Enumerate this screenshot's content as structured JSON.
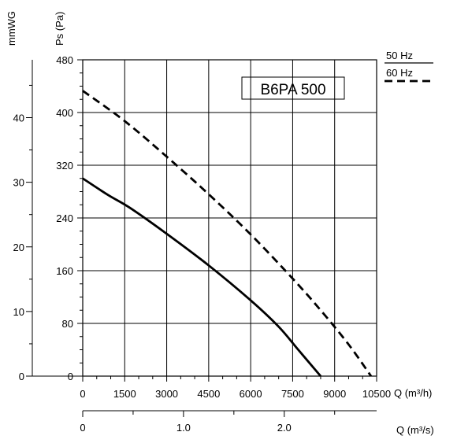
{
  "chart_data": {
    "type": "line",
    "title": "B6PA 500",
    "x_primary": {
      "label": "Q (m³/h)",
      "ticks": [
        "0",
        "1500",
        "3000",
        "4500",
        "6000",
        "7500",
        "9000",
        "10500"
      ],
      "range": [
        0,
        10500
      ]
    },
    "x_secondary": {
      "label": "Q (m³/s)",
      "ticks": [
        "0",
        "1.0",
        "2.0"
      ],
      "range": [
        0,
        2.9167
      ]
    },
    "y_primary": {
      "label": "Ps (Pa)",
      "ticks": [
        "0",
        "80",
        "160",
        "240",
        "320",
        "400",
        "480"
      ],
      "range": [
        0,
        480
      ]
    },
    "y_secondary": {
      "label": "mmWG",
      "ticks": [
        "0",
        "10",
        "20",
        "30",
        "40"
      ],
      "range": [
        0,
        48.95
      ]
    },
    "grid": true,
    "legend_position": "top-right",
    "series": [
      {
        "name": "50 Hz",
        "style": "solid",
        "color": "#000000",
        "x": [
          0,
          900,
          1700,
          3000,
          4500,
          6000,
          7000,
          7700,
          8500
        ],
        "y": [
          300,
          275,
          255,
          216,
          168,
          115,
          75,
          40,
          0
        ]
      },
      {
        "name": "60 Hz",
        "style": "dashed",
        "color": "#000000",
        "x": [
          0,
          1500,
          3000,
          4500,
          6000,
          7500,
          8500,
          9500,
          10300
        ],
        "y": [
          433,
          387,
          333,
          276,
          215,
          148,
          100,
          48,
          0
        ]
      }
    ]
  }
}
